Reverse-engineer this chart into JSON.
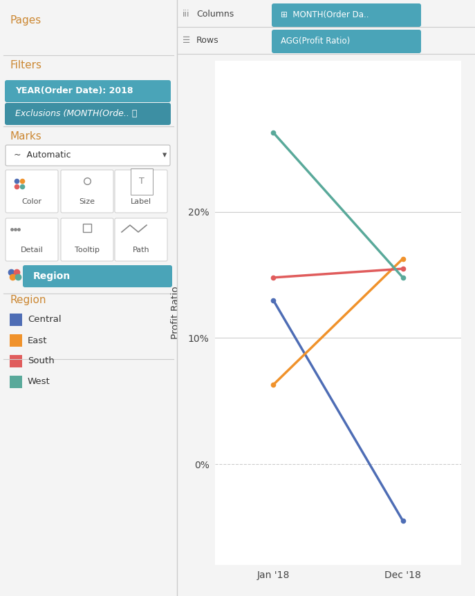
{
  "regions": [
    "Central",
    "East",
    "South",
    "West"
  ],
  "colors": {
    "Central": "#4e6db5",
    "East": "#f0922b",
    "South": "#e05c5c",
    "West": "#59a99a"
  },
  "jan_values": {
    "Central": 0.13,
    "East": 0.063,
    "South": 0.148,
    "West": 0.263
  },
  "dec_values": {
    "Central": -0.045,
    "East": 0.163,
    "South": 0.155,
    "West": 0.148
  },
  "x_labels": [
    "Jan '18",
    "Dec '18"
  ],
  "ylabel": "Profit Ratio",
  "yticks": [
    0.0,
    0.1,
    0.2
  ],
  "ytick_labels": [
    "0%",
    "10%",
    "20%"
  ],
  "ylim": [
    -0.08,
    0.32
  ],
  "line_width": 2.5,
  "panel_bg": "#f4f4f4",
  "plot_bg": "#ffffff",
  "sidebar_bg": "#f0f0f0",
  "teal_color": "#4aa4b8",
  "teal_dark": "#3d8fa3",
  "pages_text": "Pages",
  "filters_text": "Filters",
  "filter1_text": "YEAR(Order Date): 2018",
  "filter2_text": "Exclusions (MONTH(Orde.. ⦾",
  "marks_text": "Marks",
  "automatic_text": "Automatic",
  "color_text": "Color",
  "size_text": "Size",
  "label_text": "Label",
  "detail_text": "Detail",
  "tooltip_text": "Tooltip",
  "path_text": "Path",
  "region_pill_text": "Region",
  "region_legend_title": "Region",
  "columns_label": "Columns",
  "columns_val": "MONTH(Order Da..",
  "rows_label": "Rows",
  "rows_val": "AGG(Profit Ratio)",
  "header_bg": "#eeeeee",
  "divider_color": "#cccccc",
  "label_color": "#cc8833",
  "text_dark": "#333333",
  "text_mid": "#555555",
  "white": "#ffffff"
}
